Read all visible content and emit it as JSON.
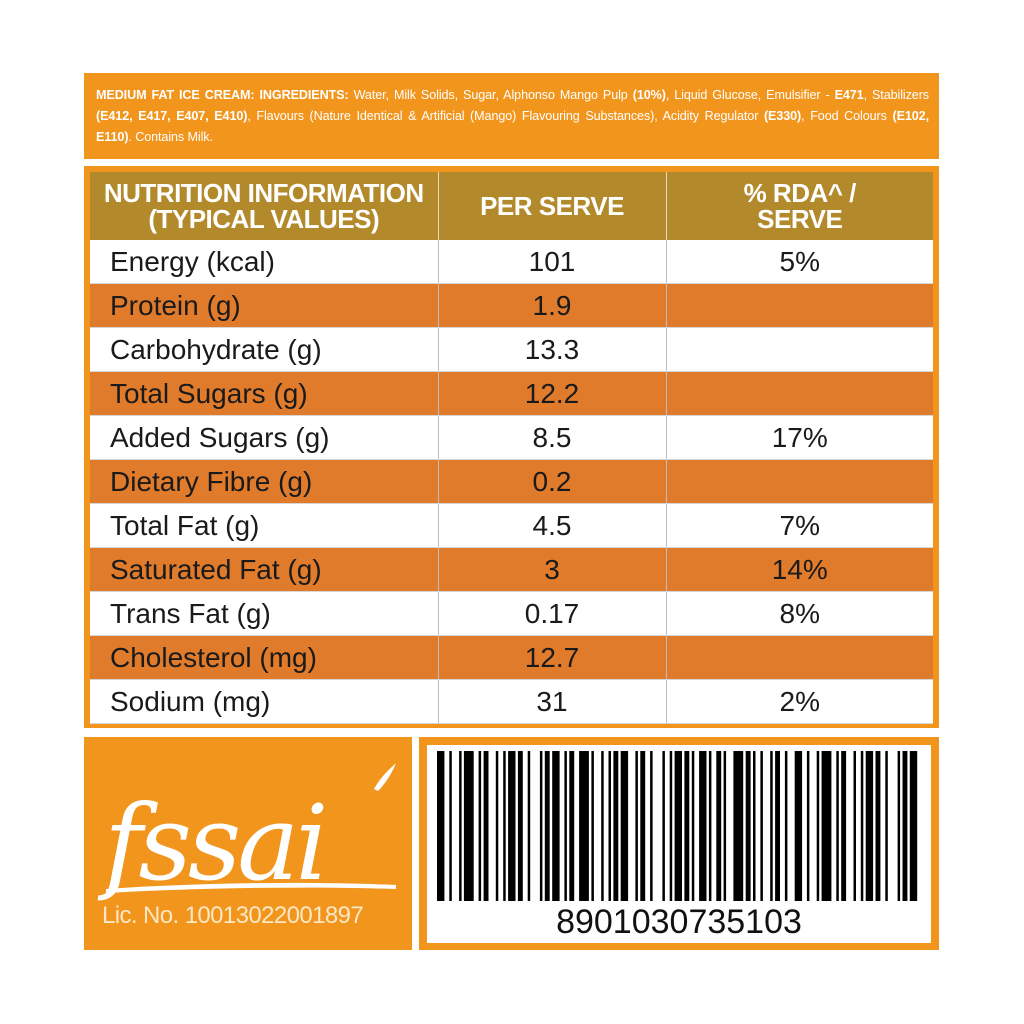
{
  "ingredients": {
    "product_label": "MEDIUM FAT ICE CREAM:",
    "ingredients_label": "INGREDIENTS:",
    "text_1": "Water, Milk Solids, Sugar, Alphonso Mango Pulp",
    "pulp_pct": "(10%)",
    "text_2": ", Liquid Glucose, Emulsifier -",
    "emulsifier_code": "E471",
    "text_3": ", Stabilizers",
    "stabilizer_codes": "(E412, E417, E407, E410)",
    "text_4": ", Flavours (Nature Identical & Artificial (Mango) Flavouring Substances), Acidity Regulator",
    "acidity_code": "(E330)",
    "text_5": ", Food Colours",
    "colour_codes": "(E102, E110)",
    "text_6": ". Contains Milk."
  },
  "nutrition": {
    "header": {
      "col1_line1": "NUTRITION INFORMATION",
      "col1_line2": "(TYPICAL VALUES)",
      "col2": "PER SERVE",
      "col3_line1": "% RDA^ /",
      "col3_line2": "SERVE"
    },
    "rows": [
      {
        "name": "Energy (kcal)",
        "value": "101",
        "rda": "5%"
      },
      {
        "name": "Protein (g)",
        "value": "1.9",
        "rda": ""
      },
      {
        "name": "Carbohydrate (g)",
        "value": "13.3",
        "rda": ""
      },
      {
        "name": "Total Sugars (g)",
        "value": "12.2",
        "rda": ""
      },
      {
        "name": "Added Sugars (g)",
        "value": "8.5",
        "rda": "17%"
      },
      {
        "name": "Dietary Fibre (g)",
        "value": "0.2",
        "rda": ""
      },
      {
        "name": "Total Fat (g)",
        "value": "4.5",
        "rda": "7%"
      },
      {
        "name": "Saturated Fat (g)",
        "value": "3",
        "rda": "14%"
      },
      {
        "name": "Trans Fat (g)",
        "value": "0.17",
        "rda": "8%"
      },
      {
        "name": "Cholesterol (mg)",
        "value": "12.7",
        "rda": ""
      },
      {
        "name": "Sodium (mg)",
        "value": "31",
        "rda": "2%"
      }
    ]
  },
  "fssai": {
    "logo_text": "fssai",
    "license": "Lic. No. 10013022001897"
  },
  "barcode": {
    "number": "8901030735103"
  },
  "colors": {
    "orange": "#f2951d",
    "row_orange": "#e07b2c",
    "header_gold": "#b38a2b"
  }
}
